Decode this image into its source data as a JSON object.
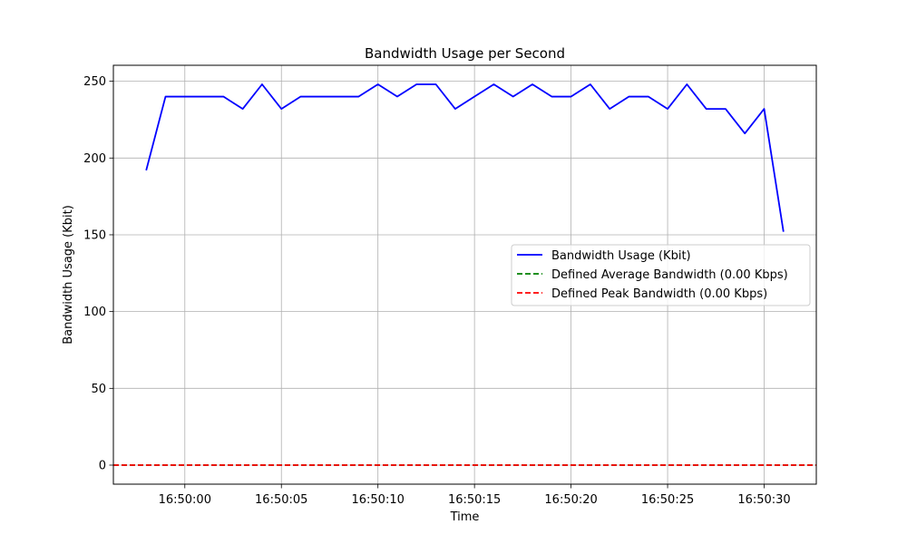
{
  "chart_data": {
    "type": "line",
    "title": "Bandwidth Usage per Second",
    "xlabel": "Time",
    "ylabel": "Bandwidth Usage (Kbit)",
    "x_ticks": [
      "16:50:00",
      "16:50:05",
      "16:50:10",
      "16:50:15",
      "16:50:20",
      "16:50:25",
      "16:50:30"
    ],
    "y_ticks": [
      0,
      50,
      100,
      150,
      200,
      250
    ],
    "xlim": [
      "16:49:56.3",
      "16:50:32.7"
    ],
    "ylim": [
      -12.4,
      260.4
    ],
    "grid": true,
    "legend_position": "center-right",
    "series": [
      {
        "name": "Bandwidth Usage (Kbit)",
        "color": "#0000ff",
        "style": "solid",
        "x": [
          "16:49:58",
          "16:49:59",
          "16:50:00",
          "16:50:01",
          "16:50:02",
          "16:50:03",
          "16:50:04",
          "16:50:05",
          "16:50:06",
          "16:50:07",
          "16:50:08",
          "16:50:09",
          "16:50:10",
          "16:50:11",
          "16:50:12",
          "16:50:13",
          "16:50:14",
          "16:50:15",
          "16:50:16",
          "16:50:17",
          "16:50:18",
          "16:50:19",
          "16:50:20",
          "16:50:21",
          "16:50:22",
          "16:50:23",
          "16:50:24",
          "16:50:25",
          "16:50:26",
          "16:50:27",
          "16:50:28",
          "16:50:29",
          "16:50:30",
          "16:50:31"
        ],
        "values": [
          192,
          240,
          240,
          240,
          240,
          232,
          248,
          232,
          240,
          240,
          240,
          240,
          248,
          240,
          248,
          248,
          232,
          240,
          248,
          240,
          248,
          240,
          240,
          248,
          232,
          240,
          240,
          232,
          248,
          232,
          232,
          216,
          232,
          152
        ]
      },
      {
        "name": "Defined Average Bandwidth (0.00 Kbps)",
        "color": "#008000",
        "style": "dashed",
        "hline": 0
      },
      {
        "name": "Defined Peak Bandwidth (0.00 Kbps)",
        "color": "#ff0000",
        "style": "dashed",
        "hline": 0
      }
    ]
  }
}
